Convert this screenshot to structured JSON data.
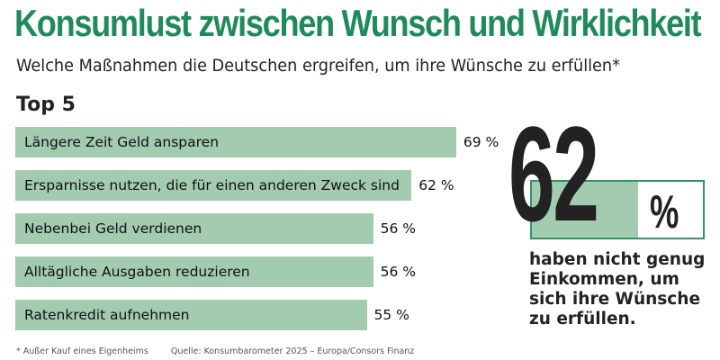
{
  "title": "Konsumlust zwischen Wunsch und Wirklichkeit",
  "subtitle": "Welche Maßnahmen die Deutschen ergreifen, um ihre Wünsche zu erfüllen*",
  "colors": {
    "title": "#1f8a5a",
    "bar": "#a2cbb0",
    "box_border": "#2f9566"
  },
  "chart_data": {
    "type": "bar",
    "orientation": "horizontal",
    "title": "Top 5",
    "categories": [
      "Längere Zeit Geld ansparen",
      "Ersparnisse nutzen, die für einen anderen Zweck sind",
      "Nebenbei Geld verdienen",
      "Alltägliche Ausgaben reduzieren",
      "Ratenkredit aufnehmen"
    ],
    "values": [
      69,
      62,
      56,
      56,
      55
    ],
    "value_labels": [
      "69 %",
      "62 %",
      "56 %",
      "56 %",
      "55 %"
    ],
    "unit": "%"
  },
  "highlight": {
    "value": "62",
    "unit": "%",
    "fill_percent": 62,
    "text": "haben nicht genug Einkommen, um sich ihre Wünsche zu erfüllen."
  },
  "footer": {
    "note": "* Außer Kauf eines Eigenheims",
    "source": "Quelle: Konsumbarometer 2025 – Europa/Consors Finanz"
  }
}
